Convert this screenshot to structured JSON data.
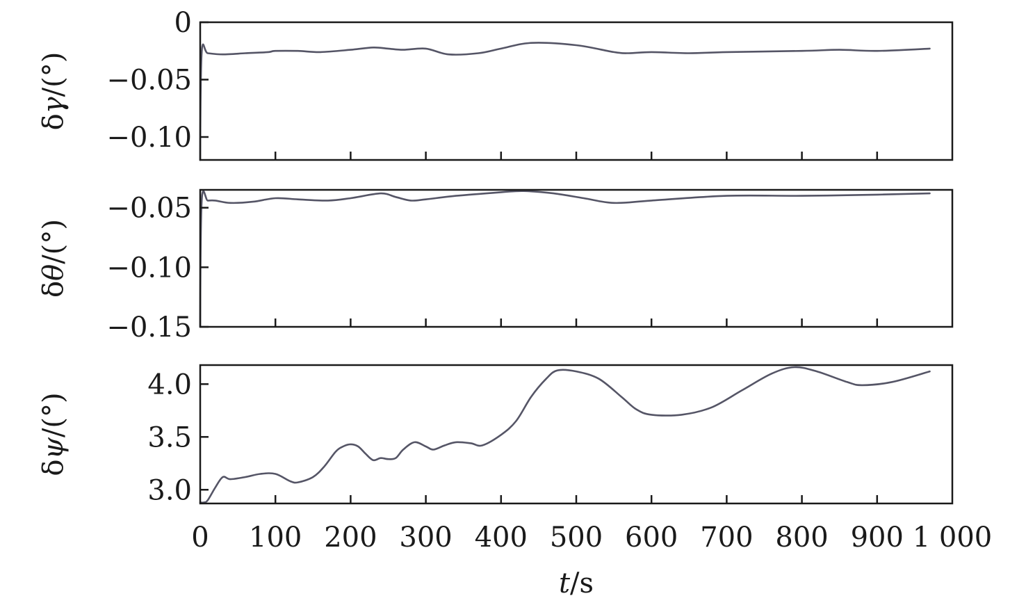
{
  "figure": {
    "xlabel_italic": "t",
    "xlabel_unit": "/s"
  },
  "chart_data": [
    {
      "type": "line",
      "ylabel": "δγ/(°)",
      "ylabel_greek": "γ",
      "ylabel_prefix": "δ",
      "ylabel_suffix": "/(°)",
      "xlim": [
        0,
        1000
      ],
      "ylim": [
        -0.12,
        0.0
      ],
      "yticks": [
        0,
        -0.05,
        -0.1
      ],
      "ytick_labels": [
        "0",
        "−0.05",
        "−0.10"
      ],
      "xticks": [
        0,
        100,
        200,
        300,
        400,
        500,
        600,
        700,
        800,
        900,
        1000
      ],
      "x": [
        0,
        2,
        10,
        30,
        60,
        90,
        100,
        130,
        160,
        200,
        230,
        250,
        270,
        300,
        330,
        370,
        400,
        440,
        500,
        550,
        570,
        600,
        650,
        700,
        800,
        850,
        900,
        970
      ],
      "values": [
        -0.12,
        -0.026,
        -0.027,
        -0.028,
        -0.027,
        -0.026,
        -0.025,
        -0.025,
        -0.026,
        -0.024,
        -0.022,
        -0.023,
        -0.024,
        -0.023,
        -0.028,
        -0.027,
        -0.023,
        -0.018,
        -0.02,
        -0.026,
        -0.027,
        -0.026,
        -0.027,
        -0.026,
        -0.025,
        -0.024,
        -0.025,
        -0.023
      ],
      "color": "#555566"
    },
    {
      "type": "line",
      "ylabel": "δθ/(°)",
      "ylabel_greek": "θ",
      "ylabel_prefix": "δ",
      "ylabel_suffix": "/(°)",
      "xlim": [
        0,
        1000
      ],
      "ylim": [
        -0.15,
        -0.035
      ],
      "yticks": [
        -0.05,
        -0.1,
        -0.15
      ],
      "ytick_labels": [
        "−0.05",
        "−0.10",
        "−0.15"
      ],
      "xticks": [
        0,
        100,
        200,
        300,
        400,
        500,
        600,
        700,
        800,
        900,
        1000
      ],
      "x": [
        0,
        2,
        10,
        20,
        40,
        70,
        100,
        130,
        170,
        200,
        240,
        260,
        280,
        300,
        340,
        400,
        430,
        470,
        510,
        550,
        600,
        700,
        800,
        900,
        970
      ],
      "values": [
        -0.15,
        -0.044,
        -0.044,
        -0.044,
        -0.046,
        -0.045,
        -0.042,
        -0.043,
        -0.044,
        -0.042,
        -0.038,
        -0.041,
        -0.044,
        -0.043,
        -0.04,
        -0.037,
        -0.036,
        -0.038,
        -0.042,
        -0.046,
        -0.044,
        -0.04,
        -0.04,
        -0.039,
        -0.038
      ],
      "color": "#555566"
    },
    {
      "type": "line",
      "ylabel": "δψ/(°)",
      "ylabel_greek": "ψ",
      "ylabel_prefix": "δ",
      "ylabel_suffix": "/(°)",
      "xlim": [
        0,
        1000
      ],
      "ylim": [
        2.87,
        4.18
      ],
      "yticks": [
        4.0,
        3.5,
        3.0
      ],
      "ytick_labels": [
        "4.0",
        "3.5",
        "3.0"
      ],
      "xticks": [
        0,
        100,
        200,
        300,
        400,
        500,
        600,
        700,
        800,
        900,
        1000
      ],
      "xtick_labels": [
        "0",
        "100",
        "200",
        "300",
        "400",
        "500",
        "600",
        "700",
        "800",
        "900",
        "1 000"
      ],
      "x": [
        0,
        5,
        10,
        20,
        30,
        40,
        60,
        80,
        100,
        120,
        130,
        150,
        165,
        180,
        190,
        200,
        210,
        220,
        230,
        240,
        250,
        260,
        270,
        285,
        300,
        310,
        325,
        340,
        360,
        375,
        400,
        420,
        440,
        460,
        475,
        500,
        530,
        560,
        580,
        600,
        640,
        680,
        720,
        760,
        790,
        820,
        860,
        880,
        920,
        970
      ],
      "values": [
        2.88,
        2.88,
        2.9,
        3.02,
        3.12,
        3.1,
        3.12,
        3.15,
        3.15,
        3.08,
        3.07,
        3.12,
        3.22,
        3.36,
        3.41,
        3.43,
        3.41,
        3.34,
        3.28,
        3.3,
        3.29,
        3.3,
        3.38,
        3.45,
        3.41,
        3.38,
        3.42,
        3.45,
        3.44,
        3.42,
        3.52,
        3.65,
        3.88,
        4.05,
        4.13,
        4.12,
        4.05,
        3.88,
        3.76,
        3.71,
        3.71,
        3.78,
        3.94,
        4.1,
        4.16,
        4.12,
        4.02,
        3.99,
        4.02,
        4.12
      ],
      "color": "#555566"
    }
  ]
}
